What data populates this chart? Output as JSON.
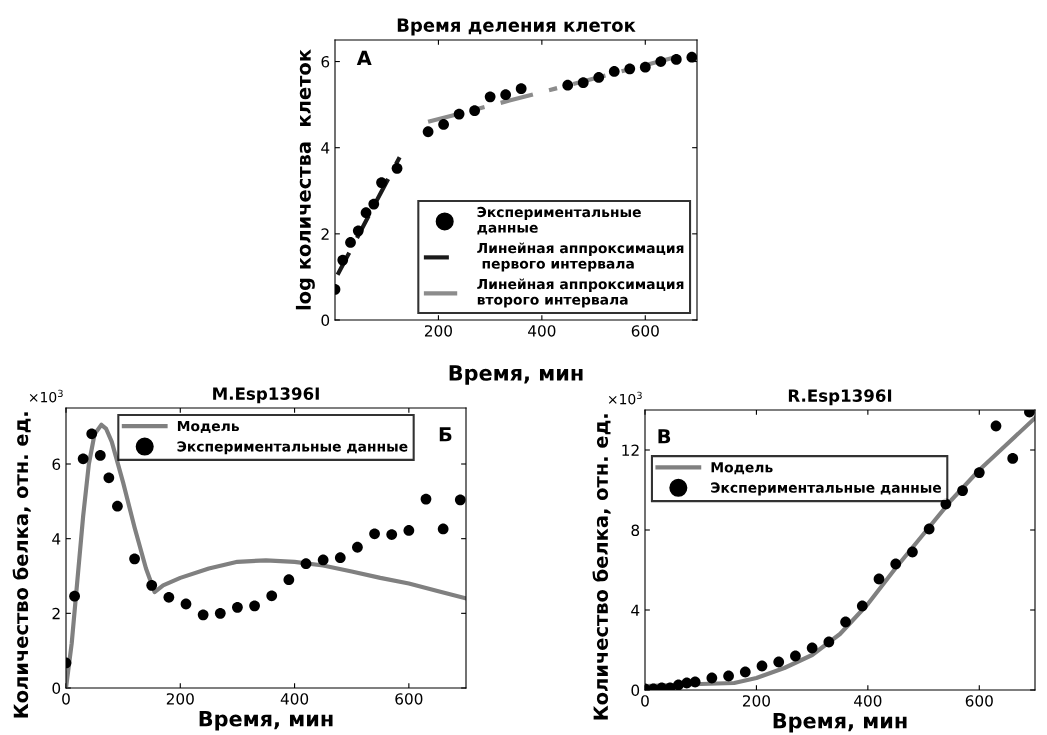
{
  "chart_data": [
    {
      "type": "scatter",
      "title": "Время деления клеток",
      "xlabel": "Время, мин",
      "ylabel": "log количества  клеток",
      "xlim": [
        0,
        700
      ],
      "ylim": [
        0,
        6.5
      ],
      "xticks": [
        200,
        400,
        600
      ],
      "yticks": [
        0,
        2,
        4,
        6
      ],
      "grid": false,
      "legend": "bottom right",
      "annotations": [
        "А"
      ],
      "series": [
        {
          "name": "Экспериментальные\nданные",
          "marker": "circle",
          "color": "#000000",
          "x": [
            0,
            15,
            30,
            45,
            60,
            75,
            90,
            120,
            180,
            210,
            240,
            270,
            300,
            330,
            360,
            450,
            480,
            510,
            540,
            570,
            600,
            630,
            660,
            690
          ],
          "values": [
            0.71,
            1.39,
            1.8,
            2.07,
            2.49,
            2.69,
            3.19,
            3.52,
            4.37,
            4.54,
            4.78,
            4.86,
            5.18,
            5.23,
            5.37,
            5.45,
            5.51,
            5.63,
            5.77,
            5.83,
            5.87,
            6.0,
            6.05,
            6.1
          ]
        },
        {
          "name": "Линейная аппроксимация\n первого интервала",
          "type": "line",
          "line_style": "dashed",
          "marker": "none",
          "color": "#1a1a1a",
          "x": [
            5,
            125
          ],
          "values": [
            1.05,
            3.78
          ]
        },
        {
          "name": "Линейная аппроксимация\nвторого интервала",
          "type": "line",
          "line_style": "dashdot",
          "marker": "none",
          "color": "#8c8c8c",
          "x": [
            180,
            690
          ],
          "values": [
            4.6,
            6.2
          ]
        }
      ]
    },
    {
      "type": "scatter",
      "title": "M.Esp1396I",
      "xlabel": "Время, мин",
      "ylabel": "Количество белка, отн. ед.",
      "xlim": [
        0,
        700
      ],
      "ylim": [
        0,
        7.5
      ],
      "xticks": [
        0,
        200,
        400,
        600
      ],
      "yticks": [
        0,
        2,
        4,
        6
      ],
      "grid": false,
      "legend": "top",
      "annotations": [
        "Б",
        "×10$^{3}$"
      ],
      "series": [
        {
          "name": "Модель",
          "type": "line",
          "line_style": "solid",
          "marker": "none",
          "color": "#808080",
          "x": [
            0,
            10,
            20,
            30,
            40,
            50,
            62,
            70,
            80,
            100,
            120,
            140,
            155,
            170,
            200,
            250,
            300,
            350,
            400,
            450,
            500,
            550,
            600,
            650,
            700
          ],
          "values": [
            0,
            1.2,
            2.9,
            4.6,
            6.0,
            6.8,
            7.05,
            6.95,
            6.6,
            5.5,
            4.3,
            3.2,
            2.57,
            2.75,
            2.95,
            3.2,
            3.38,
            3.42,
            3.38,
            3.28,
            3.12,
            2.95,
            2.8,
            2.6,
            2.4
          ]
        },
        {
          "name": "Экспериментальные данные",
          "marker": "circle",
          "color": "#000000",
          "x": [
            0,
            15,
            30,
            45,
            60,
            75,
            90,
            120,
            150,
            180,
            210,
            240,
            270,
            300,
            330,
            360,
            390,
            420,
            450,
            480,
            510,
            540,
            570,
            600,
            630,
            660,
            690
          ],
          "values": [
            0.67,
            2.46,
            6.14,
            6.81,
            6.23,
            5.63,
            4.87,
            3.46,
            2.75,
            2.43,
            2.25,
            1.96,
            2.0,
            2.16,
            2.2,
            2.47,
            2.9,
            3.33,
            3.43,
            3.49,
            3.77,
            4.13,
            4.11,
            4.22,
            5.06,
            4.26,
            5.04
          ]
        }
      ]
    },
    {
      "type": "scatter",
      "title": "R.Esp1396I",
      "xlabel": "Время, мин",
      "ylabel": "Количество белка, отн. ед.",
      "xlim": [
        0,
        700
      ],
      "ylim": [
        0,
        14
      ],
      "xticks": [
        0,
        200,
        400,
        600
      ],
      "yticks": [
        0,
        4,
        8,
        12
      ],
      "grid": false,
      "legend": "top left",
      "annotations": [
        "В",
        "×10$^{3}$"
      ],
      "series": [
        {
          "name": "Модель",
          "type": "line",
          "line_style": "solid",
          "marker": "none",
          "color": "#808080",
          "x": [
            0,
            50,
            100,
            160,
            200,
            250,
            300,
            350,
            400,
            450,
            500,
            550,
            600,
            650,
            700
          ],
          "values": [
            0.2,
            0.25,
            0.3,
            0.35,
            0.6,
            1.1,
            1.75,
            2.8,
            4.3,
            6.1,
            7.8,
            9.5,
            11.0,
            12.3,
            13.6
          ]
        },
        {
          "name": "Экспериментальные данные",
          "marker": "circle",
          "color": "#000000",
          "x": [
            0,
            15,
            30,
            45,
            60,
            75,
            90,
            120,
            150,
            180,
            210,
            240,
            270,
            300,
            330,
            360,
            390,
            420,
            450,
            480,
            510,
            540,
            570,
            600,
            630,
            660,
            690
          ],
          "values": [
            0.05,
            0.05,
            0.1,
            0.1,
            0.25,
            0.35,
            0.4,
            0.6,
            0.7,
            0.9,
            1.2,
            1.4,
            1.7,
            2.1,
            2.4,
            3.4,
            4.2,
            5.55,
            6.3,
            6.9,
            8.05,
            9.3,
            9.97,
            10.87,
            13.2,
            11.58,
            13.9
          ]
        }
      ]
    }
  ]
}
